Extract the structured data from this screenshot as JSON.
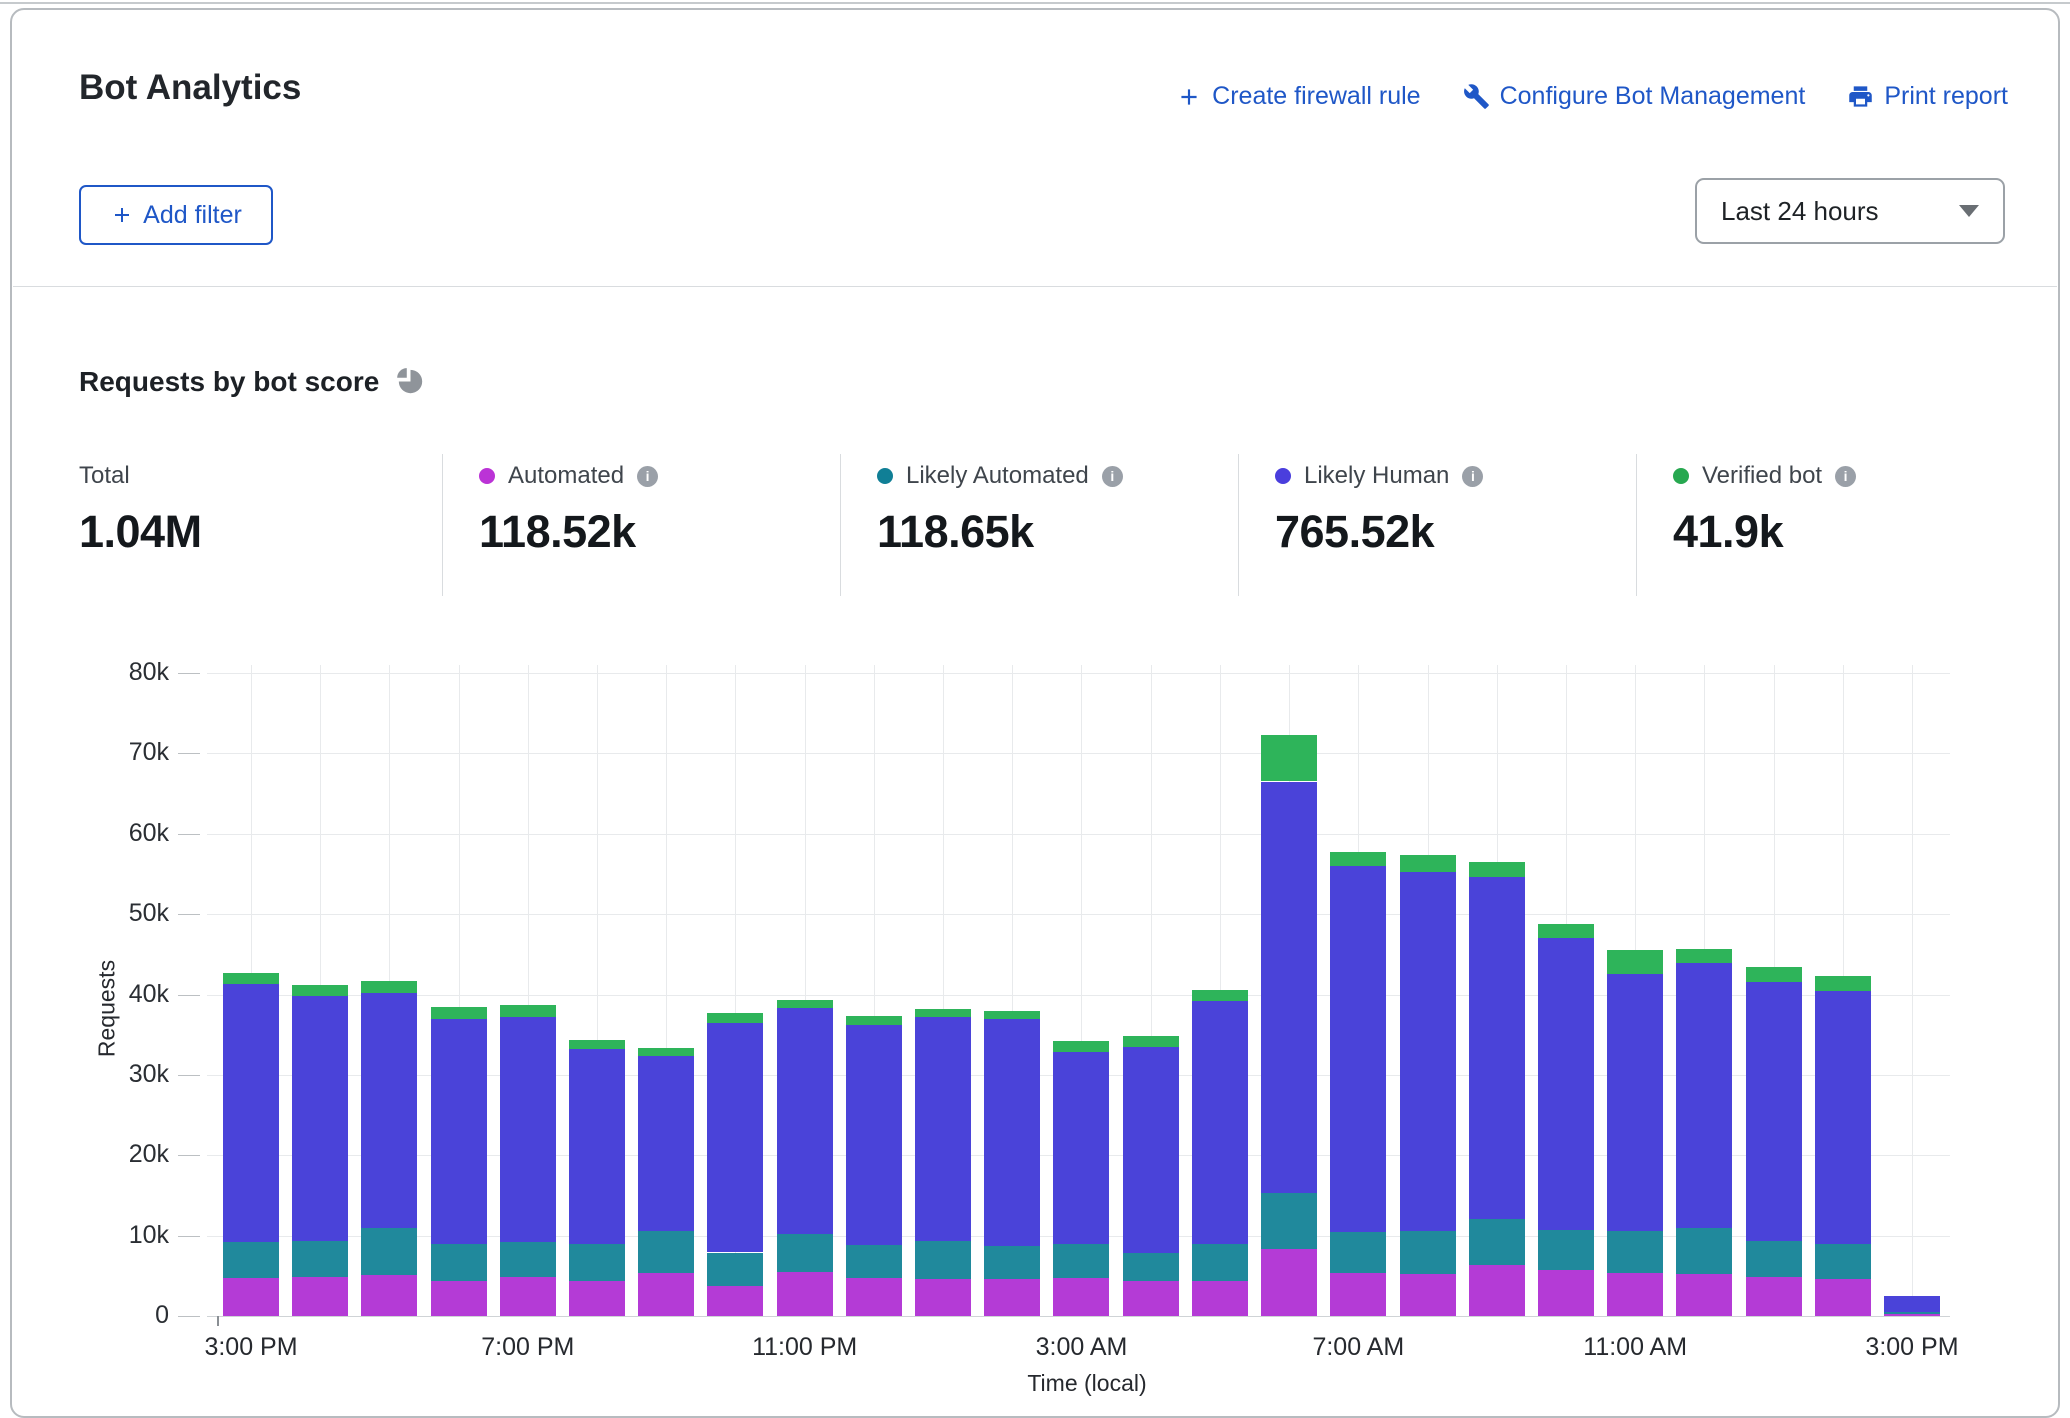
{
  "header": {
    "title": "Bot Analytics",
    "actions": [
      {
        "label": "Create firewall rule",
        "icon": "plus-icon"
      },
      {
        "label": "Configure Bot Management",
        "icon": "wrench-icon"
      },
      {
        "label": "Print report",
        "icon": "printer-icon"
      }
    ]
  },
  "filter": {
    "add_label": "Add filter"
  },
  "time_range": {
    "selected": "Last 24 hours"
  },
  "section": {
    "title": "Requests by bot score",
    "icon": "pie-chart-icon"
  },
  "stats": {
    "total": {
      "label": "Total",
      "value": "1.04M"
    },
    "metrics": [
      {
        "label": "Automated",
        "value": "118.52k",
        "color": "#bb33d6"
      },
      {
        "label": "Likely Automated",
        "value": "118.65k",
        "color": "#107f96"
      },
      {
        "label": "Likely Human",
        "value": "765.52k",
        "color": "#4a3edd"
      },
      {
        "label": "Verified bot",
        "value": "41.9k",
        "color": "#27a850"
      }
    ]
  },
  "chart_data": {
    "type": "bar",
    "stacked": true,
    "title": "Requests by bot score",
    "xlabel": "Time (local)",
    "ylabel": "Requests",
    "ylim": [
      0,
      80000
    ],
    "grid": true,
    "ytick_labels": [
      "0",
      "10k",
      "20k",
      "30k",
      "40k",
      "50k",
      "60k",
      "70k",
      "80k"
    ],
    "x_tick_labels": [
      "3:00 PM",
      "7:00 PM",
      "11:00 PM",
      "3:00 AM",
      "7:00 AM",
      "11:00 AM",
      "3:00 PM"
    ],
    "x": [
      "3:00 PM",
      "4:00 PM",
      "5:00 PM",
      "6:00 PM",
      "7:00 PM",
      "8:00 PM",
      "9:00 PM",
      "10:00 PM",
      "11:00 PM",
      "12:00 AM",
      "1:00 AM",
      "2:00 AM",
      "3:00 AM",
      "4:00 AM",
      "5:00 AM",
      "6:00 AM",
      "7:00 AM",
      "8:00 AM",
      "9:00 AM",
      "10:00 AM",
      "11:00 AM",
      "12:00 PM",
      "1:00 PM",
      "2:00 PM",
      "3:00 PM"
    ],
    "series": [
      {
        "name": "Automated",
        "color": "#b43bd6",
        "values": [
          4700,
          4800,
          5100,
          4400,
          4800,
          4400,
          5400,
          3700,
          5500,
          4700,
          4600,
          4600,
          4700,
          4400,
          4400,
          8300,
          5300,
          5200,
          6300,
          5700,
          5400,
          5200,
          4900,
          4600,
          300
        ]
      },
      {
        "name": "Likely Automated",
        "color": "#20899c",
        "values": [
          4500,
          4500,
          5900,
          4500,
          4400,
          4600,
          5200,
          4200,
          4700,
          4100,
          4700,
          4100,
          4200,
          3400,
          4600,
          7000,
          5100,
          5400,
          5800,
          5000,
          5200,
          5800,
          4400,
          4300,
          250
        ]
      },
      {
        "name": "Likely Human",
        "color": "#4a43d9",
        "values": [
          32100,
          30500,
          29200,
          28000,
          28000,
          24200,
          21800,
          28600,
          28100,
          27400,
          27900,
          28200,
          24000,
          25700,
          30200,
          51200,
          45600,
          44700,
          42500,
          36300,
          31900,
          32900,
          32300,
          31500,
          1950
        ]
      },
      {
        "name": "Verified bot",
        "color": "#2eb45a",
        "values": [
          1400,
          1400,
          1500,
          1500,
          1500,
          1100,
          1000,
          1200,
          1000,
          1100,
          1000,
          1100,
          1300,
          1300,
          1300,
          5800,
          1700,
          2000,
          1900,
          1800,
          3000,
          1800,
          1800,
          1900,
          0
        ]
      }
    ]
  }
}
